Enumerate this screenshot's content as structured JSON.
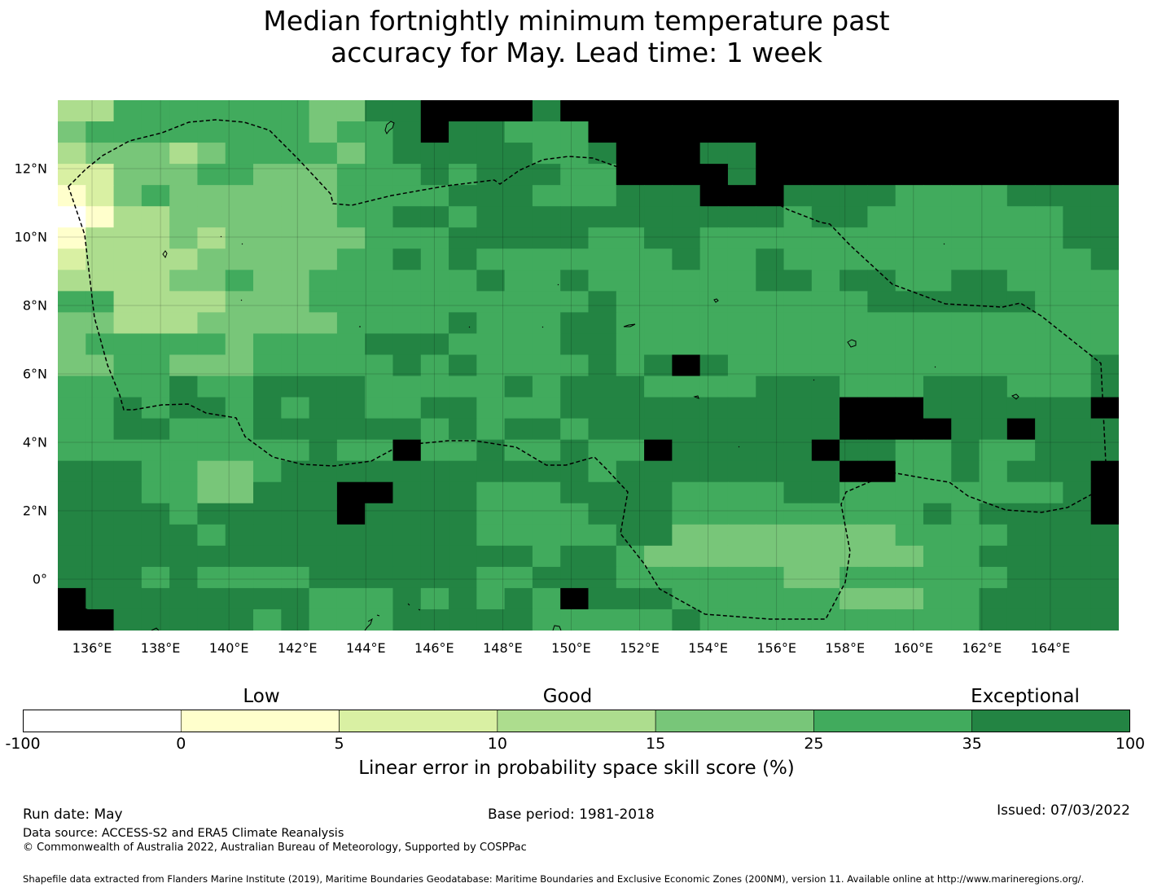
{
  "title_line1": "Median fortnightly minimum temperature past",
  "title_line2": "accuracy for May. Lead time: 1 week",
  "map": {
    "lon_range": [
      135,
      166
    ],
    "lat_range": [
      -1.5,
      14
    ],
    "cell_size_deg": 0.833,
    "x_ticks": [
      "136°E",
      "138°E",
      "140°E",
      "142°E",
      "144°E",
      "146°E",
      "148°E",
      "150°E",
      "152°E",
      "154°E",
      "156°E",
      "158°E",
      "160°E",
      "162°E",
      "164°E"
    ],
    "x_tick_values": [
      136,
      138,
      140,
      142,
      144,
      146,
      148,
      150,
      152,
      154,
      156,
      158,
      160,
      162,
      164
    ],
    "y_ticks": [
      "12°N",
      "10°N",
      "8°N",
      "6°N",
      "4°N",
      "2°N",
      "0°"
    ],
    "y_tick_values": [
      12,
      10,
      8,
      6,
      4,
      2,
      0
    ],
    "grid": [
      "44666666655778888788888888888888888888",
      "56666666656678776668888888888888888888",
      "45554566665677777667888778888888888888",
      "33555665556667677766888878888888888888",
      "23565555556666777666777888777766667777",
      "12445555556677677777777777677666666677",
      "24445455555666777776677666666666666677",
      "34444555556676766666667667666666666667",
      "44445565566666676676666667767766776666",
      "66444455566666666667666666666777777666",
      "55444555556666766677666666666666666666",
      "56666656666777666677666666666666666666",
      "55665556666676766667678766666666666667",
      "66667667777666667677766667776667776667",
      "66767767677667766677777777778887777778",
      "66776667777776767767777777778888778777",
      "66666666676686676676687777787766766777",
      "77766556777777777776777777778866767778",
      "77766557778877766677776666776666666678",
      "77776777778777766667776666666667677778",
      "77777677777777766666775555555566667777",
      "77777777777777777677655555555556677777",
      "77767666677777766777666666556666667777",
      "87777777766676767687776666665556677777",
      "88777776766677777666667666666666677777"
    ]
  },
  "colorbar": {
    "categories": [
      "Low",
      "Good",
      "Exceptional"
    ],
    "tick_labels": [
      "-100",
      "0",
      "5",
      "10",
      "15",
      "25",
      "35",
      "100"
    ],
    "colors": [
      "#ffffff",
      "#ffffcc",
      "#d9f0a3",
      "#addd8e",
      "#78c679",
      "#41ab5d",
      "#238443"
    ],
    "label": "Linear error in probability space skill score (%)"
  },
  "footer": {
    "run_date": "Run date: May",
    "base_period": "Base period: 1981-2018",
    "issued": "Issued: 07/03/2022",
    "data_source": "Data source: ACCESS-S2 and ERA5 Climate Reanalysis",
    "copyright": "© Commonwealth of Australia 2022, Australian Bureau of Meteorology, Supported by COSPPac",
    "shapefile": "Shapefile data extracted from Flanders Marine Institute (2019), Maritime Boundaries Geodatabase: Maritime Boundaries and Exclusive Economic Zones (200NM), version 11. Available online at http://www.marineregions.org/."
  }
}
